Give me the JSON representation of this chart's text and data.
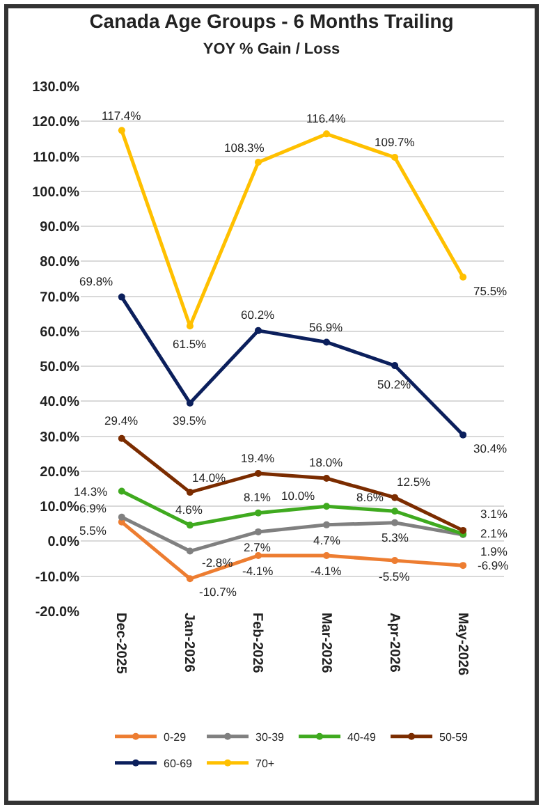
{
  "chart_data": {
    "type": "line",
    "title": "Canada Age Groups - 6 Months Trailing",
    "subtitle": "YOY % Gain / Loss",
    "categories": [
      "Dec-2025",
      "Jan-2026",
      "Feb-2026",
      "Mar-2026",
      "Apr-2026",
      "May-2026"
    ],
    "series": [
      {
        "name": "0-29",
        "color": "#ed7d31",
        "values": [
          5.5,
          -10.7,
          -4.1,
          -4.1,
          -5.5,
          -6.9
        ],
        "value_labels": [
          "5.5%",
          "-10.7%",
          "-4.1%",
          "-4.1%",
          "-5.5%",
          "-6.9%"
        ]
      },
      {
        "name": "30-39",
        "color": "#808080",
        "values": [
          6.9,
          -2.8,
          2.7,
          4.7,
          5.3,
          1.9
        ],
        "value_labels": [
          "6.9%",
          "-2.8%",
          "2.7%",
          "4.7%",
          "5.3%",
          "1.9%"
        ]
      },
      {
        "name": "40-49",
        "color": "#3faa1f",
        "values": [
          14.3,
          4.6,
          8.1,
          10.0,
          8.6,
          2.1
        ],
        "value_labels": [
          "14.3%",
          "4.6%",
          "8.1%",
          "10.0%",
          "8.6%",
          "2.1%"
        ]
      },
      {
        "name": "50-59",
        "color": "#7b2c00",
        "values": [
          29.4,
          14.0,
          19.4,
          18.0,
          12.5,
          3.1
        ],
        "value_labels": [
          "29.4%",
          "14.0%",
          "19.4%",
          "18.0%",
          "12.5%",
          "3.1%"
        ]
      },
      {
        "name": "60-69",
        "color": "#0b1f5c",
        "values": [
          69.8,
          39.5,
          60.2,
          56.9,
          50.2,
          30.4
        ],
        "value_labels": [
          "69.8%",
          "39.5%",
          "60.2%",
          "56.9%",
          "50.2%",
          "30.4%"
        ]
      },
      {
        "name": "70+",
        "color": "#ffc000",
        "values": [
          117.4,
          61.5,
          108.3,
          116.4,
          109.7,
          75.5
        ],
        "value_labels": [
          "117.4%",
          "61.5%",
          "108.3%",
          "116.4%",
          "109.7%",
          "75.5%"
        ]
      }
    ],
    "ylim": [
      -20,
      130
    ],
    "yticks": [
      {
        "value": -20,
        "label": "-20.0%"
      },
      {
        "value": -10,
        "label": "-10.0%"
      },
      {
        "value": 0,
        "label": "0.0%"
      },
      {
        "value": 10,
        "label": "10.0%"
      },
      {
        "value": 20,
        "label": "20.0%"
      },
      {
        "value": 30,
        "label": "30.0%"
      },
      {
        "value": 40,
        "label": "40.0%"
      },
      {
        "value": 50,
        "label": "50.0%"
      },
      {
        "value": 60,
        "label": "60.0%"
      },
      {
        "value": 70,
        "label": "70.0%"
      },
      {
        "value": 80,
        "label": "80.0%"
      },
      {
        "value": 90,
        "label": "90.0%"
      },
      {
        "value": 100,
        "label": "100.0%"
      },
      {
        "value": 110,
        "label": "110.0%"
      },
      {
        "value": 120,
        "label": "120.0%"
      },
      {
        "value": 130,
        "label": "130.0%"
      }
    ],
    "grid": "y",
    "legend": "bottom",
    "marker": "circle",
    "line_style": "solid"
  }
}
